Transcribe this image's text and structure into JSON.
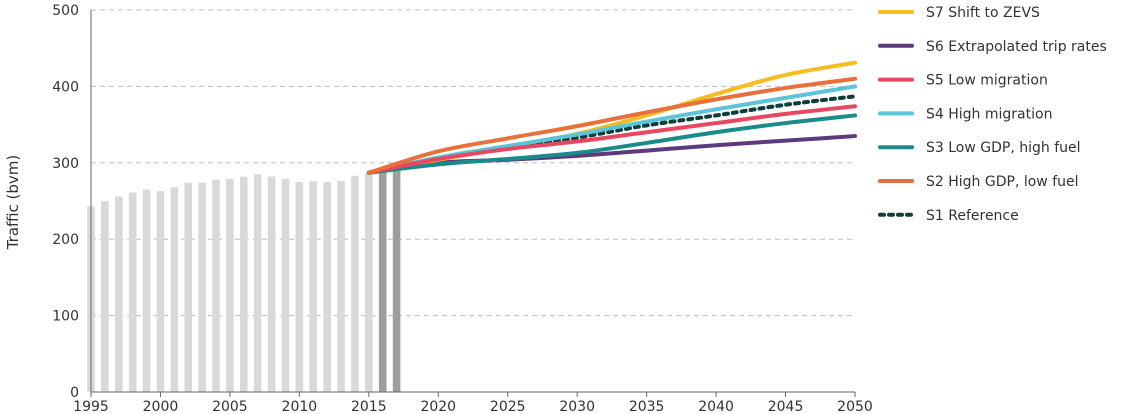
{
  "chart_data": {
    "type": "line",
    "ylabel": "Traffic (bvm)",
    "xlabel": "",
    "ylim": [
      0,
      500
    ],
    "xlim": [
      1995,
      2050
    ],
    "yticks": [
      0,
      100,
      200,
      300,
      400,
      500
    ],
    "xticks": [
      1995,
      2000,
      2005,
      2010,
      2015,
      2020,
      2025,
      2030,
      2035,
      2040,
      2045,
      2050
    ],
    "grid": "horizontal dashed",
    "legend_position": "right",
    "historical_bars": {
      "x": [
        1995,
        1996,
        1997,
        1998,
        1999,
        2000,
        2001,
        2002,
        2003,
        2004,
        2005,
        2006,
        2007,
        2008,
        2009,
        2010,
        2011,
        2012,
        2013,
        2014,
        2015
      ],
      "values": [
        243,
        250,
        256,
        261,
        265,
        263,
        268,
        274,
        274,
        278,
        279,
        282,
        285,
        282,
        279,
        275,
        276,
        275,
        276,
        283,
        286
      ],
      "color": "#d9d9d9"
    },
    "recent_bars": {
      "x": [
        2016,
        2017
      ],
      "values": [
        292,
        296
      ],
      "color": "#9e9e9e"
    },
    "series": [
      {
        "name": "S7 Shift to ZEVS",
        "color": "#f5bd1f",
        "style": "solid",
        "x": [
          2015,
          2020,
          2025,
          2030,
          2035,
          2040,
          2045,
          2050
        ],
        "values": [
          287,
          304,
          320,
          338,
          362,
          390,
          415,
          431
        ]
      },
      {
        "name": "S6 Extrapolated trip rates",
        "color": "#5b3a7e",
        "style": "solid",
        "x": [
          2015,
          2020,
          2025,
          2030,
          2035,
          2040,
          2045,
          2050
        ],
        "values": [
          287,
          300,
          304,
          309,
          316,
          323,
          329,
          335
        ]
      },
      {
        "name": "S5 Low migration",
        "color": "#e8475f",
        "style": "solid",
        "x": [
          2015,
          2020,
          2025,
          2030,
          2035,
          2040,
          2045,
          2050
        ],
        "values": [
          287,
          305,
          318,
          328,
          340,
          352,
          364,
          374
        ]
      },
      {
        "name": "S4 High migration",
        "color": "#5bc4d8",
        "style": "solid",
        "x": [
          2015,
          2020,
          2025,
          2030,
          2035,
          2040,
          2045,
          2050
        ],
        "values": [
          287,
          307,
          322,
          337,
          354,
          370,
          385,
          400
        ]
      },
      {
        "name": "S3 Low GDP, high fuel",
        "color": "#1a8a8a",
        "style": "solid",
        "x": [
          2015,
          2020,
          2025,
          2030,
          2035,
          2040,
          2045,
          2050
        ],
        "values": [
          287,
          298,
          305,
          313,
          326,
          340,
          352,
          362
        ]
      },
      {
        "name": "S2 High GDP, low fuel",
        "color": "#e8703a",
        "style": "solid",
        "x": [
          2015,
          2020,
          2025,
          2030,
          2035,
          2040,
          2045,
          2050
        ],
        "values": [
          287,
          315,
          332,
          348,
          366,
          383,
          398,
          410
        ]
      },
      {
        "name": "S1 Reference",
        "color": "#0f3d3d",
        "style": "dotted",
        "x": [
          2015,
          2020,
          2025,
          2030,
          2035,
          2040,
          2045,
          2050
        ],
        "values": [
          287,
          306,
          321,
          333,
          349,
          362,
          376,
          387
        ]
      }
    ]
  }
}
